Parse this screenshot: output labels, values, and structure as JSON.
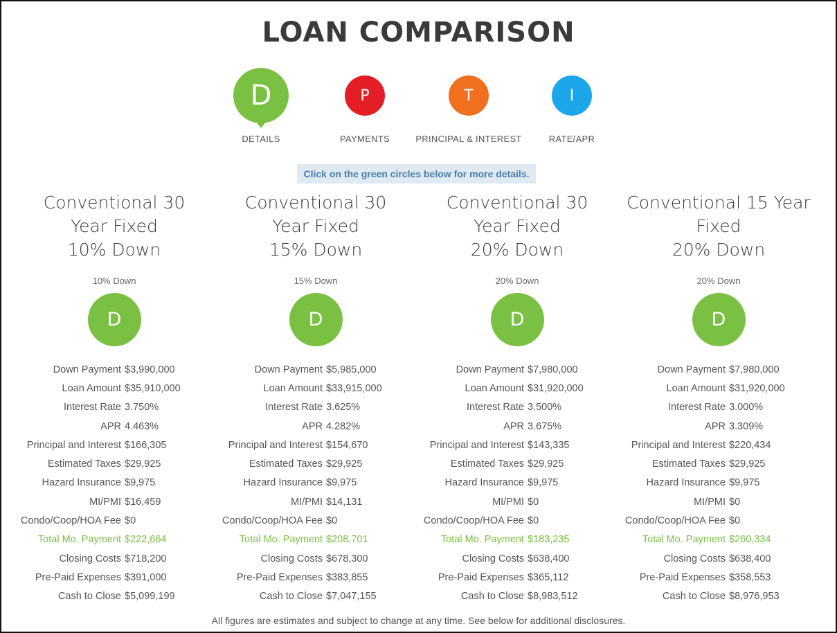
{
  "page_title": "LOAN COMPARISON",
  "tabs": [
    {
      "letter": "D",
      "label": "DETAILS",
      "color": "#7ac143",
      "icon": "details-circle-icon"
    },
    {
      "letter": "P",
      "label": "PAYMENTS",
      "color": "#e31e26",
      "icon": "payments-circle-icon"
    },
    {
      "letter": "T",
      "label": "PRINCIPAL & INTEREST",
      "color": "#f07020",
      "icon": "principal-interest-circle-icon"
    },
    {
      "letter": "I",
      "label": "RATE/APR",
      "color": "#1aa6e8",
      "icon": "rate-apr-circle-icon"
    }
  ],
  "hint": "Click on the green circles below for more details.",
  "row_labels": {
    "down_payment": "Down Payment",
    "loan_amount": "Loan Amount",
    "interest_rate": "Interest Rate",
    "apr": "APR",
    "principal_interest": "Principal and Interest",
    "estimated_taxes": "Estimated Taxes",
    "hazard_insurance": "Hazard Insurance",
    "mi_pmi": "MI/PMI",
    "hoa_fee": "Condo/Coop/HOA Fee",
    "total_payment": "Total Mo. Payment",
    "closing_costs": "Closing Costs",
    "prepaid": "Pre-Paid Expenses",
    "cash_to_close": "Cash to Close"
  },
  "loans": [
    {
      "name": [
        "Conventional 30",
        "Year Fixed",
        "10% Down"
      ],
      "sub": "10% Down",
      "circle_letter": "D",
      "down_payment": "$3,990,000",
      "loan_amount": "$35,910,000",
      "interest_rate": "3.750%",
      "apr": "4.463%",
      "principal_interest": "$166,305",
      "estimated_taxes": "$29,925",
      "hazard_insurance": "$9,975",
      "mi_pmi": "$16,459",
      "hoa_fee": "$0",
      "total_payment": "$222,664",
      "closing_costs": "$718,200",
      "prepaid": "$391,000",
      "cash_to_close": "$5,099,199"
    },
    {
      "name": [
        "Conventional 30",
        "Year Fixed",
        "15% Down"
      ],
      "sub": "15% Down",
      "circle_letter": "D",
      "down_payment": "$5,985,000",
      "loan_amount": "$33,915,000",
      "interest_rate": "3.625%",
      "apr": "4.282%",
      "principal_interest": "$154,670",
      "estimated_taxes": "$29,925",
      "hazard_insurance": "$9,975",
      "mi_pmi": "$14,131",
      "hoa_fee": "$0",
      "total_payment": "$208,701",
      "closing_costs": "$678,300",
      "prepaid": "$383,855",
      "cash_to_close": "$7,047,155"
    },
    {
      "name": [
        "Conventional 30",
        "Year Fixed",
        "20% Down"
      ],
      "sub": "20% Down",
      "circle_letter": "D",
      "down_payment": "$7,980,000",
      "loan_amount": "$31,920,000",
      "interest_rate": "3.500%",
      "apr": "3.675%",
      "principal_interest": "$143,335",
      "estimated_taxes": "$29,925",
      "hazard_insurance": "$9,975",
      "mi_pmi": "$0",
      "hoa_fee": "$0",
      "total_payment": "$183,235",
      "closing_costs": "$638,400",
      "prepaid": "$365,112",
      "cash_to_close": "$8,983,512"
    },
    {
      "name": [
        "Conventional 15 Year",
        "Fixed",
        "20% Down"
      ],
      "sub": "20% Down",
      "circle_letter": "D",
      "down_payment": "$7,980,000",
      "loan_amount": "$31,920,000",
      "interest_rate": "3.000%",
      "apr": "3.309%",
      "principal_interest": "$220,434",
      "estimated_taxes": "$29,925",
      "hazard_insurance": "$9,975",
      "mi_pmi": "$0",
      "hoa_fee": "$0",
      "total_payment": "$260,334",
      "closing_costs": "$638,400",
      "prepaid": "$358,553",
      "cash_to_close": "$8,976,953"
    }
  ],
  "footer": "All figures are estimates and subject to change at any time. See below for additional disclosures."
}
